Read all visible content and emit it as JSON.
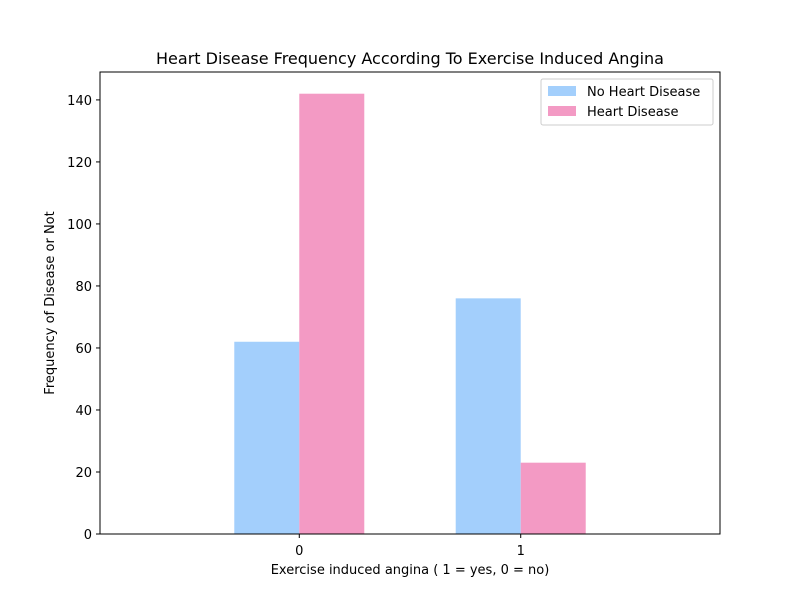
{
  "chart_data": {
    "type": "bar",
    "title": "Heart Disease Frequency According To Exercise Induced Angina",
    "xlabel": "Exercise induced angina ( 1 = yes, 0 = no)",
    "ylabel": "Frequency of Disease or Not",
    "categories": [
      "0",
      "1"
    ],
    "series": [
      {
        "name": "No Heart Disease",
        "values": [
          62,
          76
        ],
        "color": "#a3cffc"
      },
      {
        "name": "Heart Disease",
        "values": [
          142,
          23
        ],
        "color": "#f39ac4"
      }
    ],
    "ylim": [
      0,
      149
    ],
    "yticks": [
      0,
      20,
      40,
      60,
      80,
      100,
      120,
      140
    ],
    "grid": false,
    "legend_position": "top-right"
  }
}
